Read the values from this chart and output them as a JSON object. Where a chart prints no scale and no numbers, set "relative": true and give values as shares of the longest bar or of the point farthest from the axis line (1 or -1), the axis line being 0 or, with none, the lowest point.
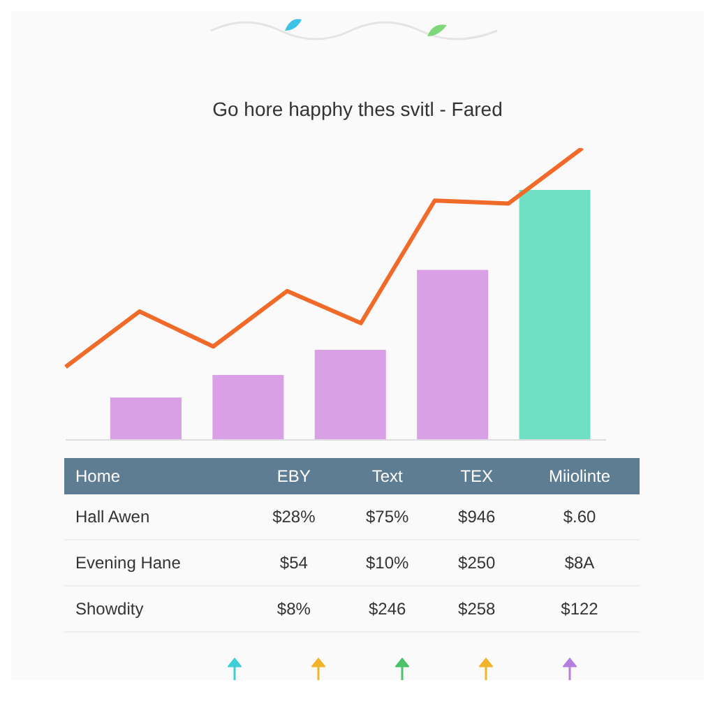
{
  "chart_data": [
    {
      "type": "bar",
      "title": "Go hore happhy thes svitl - Fared",
      "relative": true,
      "categories": [
        null,
        null,
        null,
        null,
        null
      ],
      "colors": [
        "#d9a0e6",
        "#d9a0e6",
        "#d9a0e6",
        "#d9a0e6",
        "#6fe0c3"
      ],
      "values": [
        0.17,
        0.26,
        0.36,
        0.68,
        1
      ],
      "annotations": [
        "Home",
        "EBY",
        "Text",
        "TEX",
        "Miiolinte",
        "Hall Awen",
        "$28%",
        "$75%",
        "$946",
        "$.60",
        "Evening Hane",
        "$54",
        "$10%",
        "$250",
        "$8A",
        "Showdity",
        "$8%",
        "$246",
        "$258",
        "$122"
      ]
    },
    {
      "type": "line",
      "relative": true,
      "color": "#f06a2a",
      "categories": [
        null,
        null,
        null,
        null,
        null,
        null,
        null,
        null
      ],
      "values": [
        0.25,
        0.44,
        0.32,
        0.51,
        0.4,
        0.82,
        0.81,
        1
      ]
    }
  ]
}
